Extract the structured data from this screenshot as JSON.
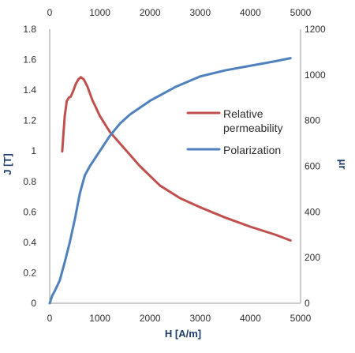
{
  "chart_data": {
    "type": "line",
    "title": "",
    "xlabel": "H [A/m]",
    "ylabel_left": "J [T]",
    "ylabel_right": "μr",
    "xlim": [
      0,
      5000
    ],
    "ylim_left": [
      0,
      1.8
    ],
    "ylim_right": [
      0,
      1200
    ],
    "x_ticks": [
      "0",
      "1000",
      "2000",
      "3000",
      "4000",
      "5000"
    ],
    "y_ticks_left": [
      "0",
      "0.2",
      "0.4",
      "0.6",
      "0.8",
      "1",
      "1.2",
      "1.4",
      "1.6",
      "1.8"
    ],
    "y_ticks_right": [
      "0",
      "200",
      "400",
      "600",
      "800",
      "1000",
      "1200"
    ],
    "grid": false,
    "legend_position": "center-right",
    "series": [
      {
        "name": "Relative permeability",
        "legend_lines": [
          "Relative",
          "permeability"
        ],
        "axis": "right",
        "color": "#c0504d",
        "x": [
          250,
          260,
          300,
          340,
          380,
          420,
          470,
          520,
          570,
          620,
          680,
          750,
          850,
          1000,
          1200,
          1500,
          1800,
          2200,
          2600,
          3000,
          3500,
          4000,
          4500,
          4800
        ],
        "y": [
          665,
          700,
          820,
          885,
          900,
          905,
          930,
          960,
          980,
          990,
          980,
          950,
          890,
          820,
          750,
          675,
          600,
          515,
          460,
          420,
          375,
          335,
          300,
          275
        ]
      },
      {
        "name": "Polarization",
        "legend_lines": [
          "Polarization"
        ],
        "axis": "left",
        "color": "#4f81bd",
        "x": [
          0,
          50,
          100,
          200,
          300,
          400,
          500,
          600,
          700,
          800,
          1000,
          1200,
          1400,
          1600,
          2000,
          2500,
          3000,
          3500,
          4000,
          4500,
          4800
        ],
        "y": [
          0,
          0.05,
          0.08,
          0.15,
          0.27,
          0.4,
          0.55,
          0.72,
          0.84,
          0.9,
          1.0,
          1.1,
          1.18,
          1.24,
          1.33,
          1.42,
          1.49,
          1.53,
          1.56,
          1.59,
          1.61
        ]
      }
    ]
  }
}
